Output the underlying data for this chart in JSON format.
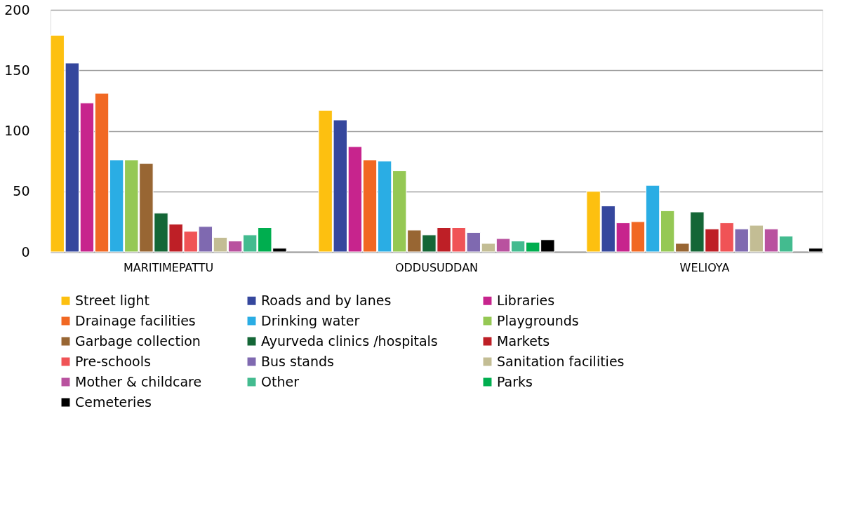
{
  "chart_data": {
    "type": "bar",
    "categories": [
      "MARITIMEPATTU",
      "ODDUSUDDAN",
      "WELIOYA"
    ],
    "ylim": [
      0,
      200
    ],
    "yticks": [
      0,
      50,
      100,
      150,
      200
    ],
    "grid": "y",
    "legend": "bottom",
    "series": [
      {
        "name": "Street light",
        "color": "#fdc010",
        "values": [
          179,
          117,
          50
        ]
      },
      {
        "name": "Roads and by lanes",
        "color": "#35479d",
        "values": [
          156,
          109,
          38
        ]
      },
      {
        "name": "Libraries",
        "color": "#c7248d",
        "values": [
          123,
          87,
          24
        ]
      },
      {
        "name": "Drainage facilities",
        "color": "#f16823",
        "values": [
          131,
          76,
          25
        ]
      },
      {
        "name": "Drinking water",
        "color": "#2aade4",
        "values": [
          76,
          75,
          55
        ]
      },
      {
        "name": "Playgrounds",
        "color": "#95c854",
        "values": [
          76,
          67,
          34
        ]
      },
      {
        "name": "Garbage collection",
        "color": "#986633",
        "values": [
          73,
          18,
          7
        ]
      },
      {
        "name": "Ayurveda clinics /hospitals",
        "color": "#146636",
        "values": [
          32,
          14,
          33
        ]
      },
      {
        "name": "Markets",
        "color": "#be1f26",
        "values": [
          23,
          20,
          19
        ]
      },
      {
        "name": "Pre-schools",
        "color": "#f05356",
        "values": [
          17,
          20,
          24
        ]
      },
      {
        "name": "Bus stands",
        "color": "#7f69b0",
        "values": [
          21,
          16,
          19
        ]
      },
      {
        "name": "Sanitation facilities",
        "color": "#c3bd94",
        "values": [
          12,
          7,
          22
        ]
      },
      {
        "name": "Mother & childcare",
        "color": "#b9529f",
        "values": [
          9,
          11,
          19
        ]
      },
      {
        "name": "Other",
        "color": "#43bb8f",
        "values": [
          14,
          9,
          13
        ]
      },
      {
        "name": "Parks",
        "color": "#00ae4f",
        "values": [
          20,
          8,
          null
        ]
      },
      {
        "name": "Cemeteries",
        "color": "#000000",
        "values": [
          3,
          10,
          3
        ]
      }
    ]
  }
}
